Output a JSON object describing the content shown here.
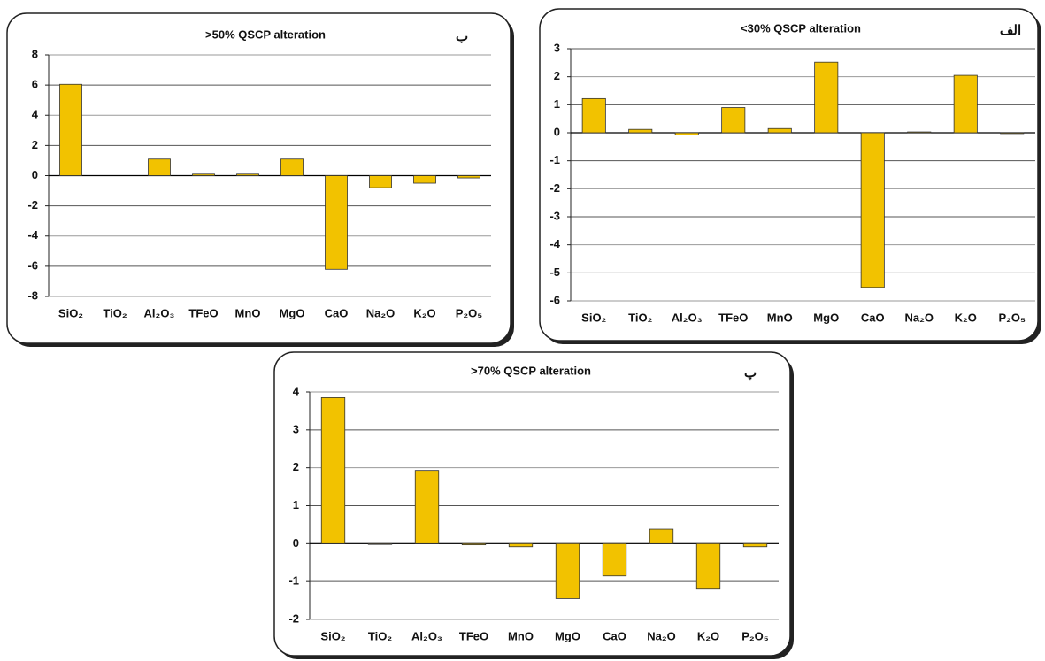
{
  "chart_data": [
    {
      "type": "bar",
      "title": ">50% QSCP alteration",
      "panel_label": "ب",
      "categories": [
        "SiO₂",
        "TiO₂",
        "Al₂O₃",
        "TFeO",
        "MnO",
        "MgO",
        "CaO",
        "Na₂O",
        "K₂O",
        "P₂O₅"
      ],
      "values": [
        6.05,
        0,
        1.1,
        0.1,
        0.1,
        1.1,
        -6.2,
        -0.8,
        -0.5,
        -0.15
      ],
      "color": "#f2c200",
      "ylim": [
        -8,
        8
      ],
      "yticks": [
        -8,
        -6,
        -4,
        -2,
        0,
        2,
        4,
        6,
        8
      ],
      "grid": true
    },
    {
      "type": "bar",
      "title": "<30% QSCP alteration",
      "panel_label": "الف",
      "categories": [
        "SiO₂",
        "TiO₂",
        "Al₂O₃",
        "TFeO",
        "MnO",
        "MgO",
        "CaO",
        "Na₂O",
        "K₂O",
        "P₂O₅"
      ],
      "values": [
        1.22,
        0.12,
        -0.08,
        0.9,
        0.15,
        2.52,
        -5.52,
        0.03,
        2.05,
        -0.03
      ],
      "color": "#f2c200",
      "ylim": [
        -6,
        3
      ],
      "yticks": [
        -6,
        -5,
        -4,
        -3,
        -2,
        -1,
        0,
        1,
        2,
        3
      ],
      "grid": true
    },
    {
      "type": "bar",
      "title": ">70% QSCP alteration",
      "panel_label": "پ",
      "categories": [
        "SiO₂",
        "TiO₂",
        "Al₂O₃",
        "TFeO",
        "MnO",
        "MgO",
        "CaO",
        "Na₂O",
        "K₂O",
        "P₂O₅"
      ],
      "values": [
        3.85,
        -0.02,
        1.93,
        -0.03,
        -0.08,
        -1.45,
        -0.85,
        0.38,
        -1.2,
        -0.08
      ],
      "color": "#f2c200",
      "ylim": [
        -2,
        4
      ],
      "yticks": [
        -2,
        -1,
        0,
        1,
        2,
        3,
        4
      ],
      "grid": true
    }
  ]
}
